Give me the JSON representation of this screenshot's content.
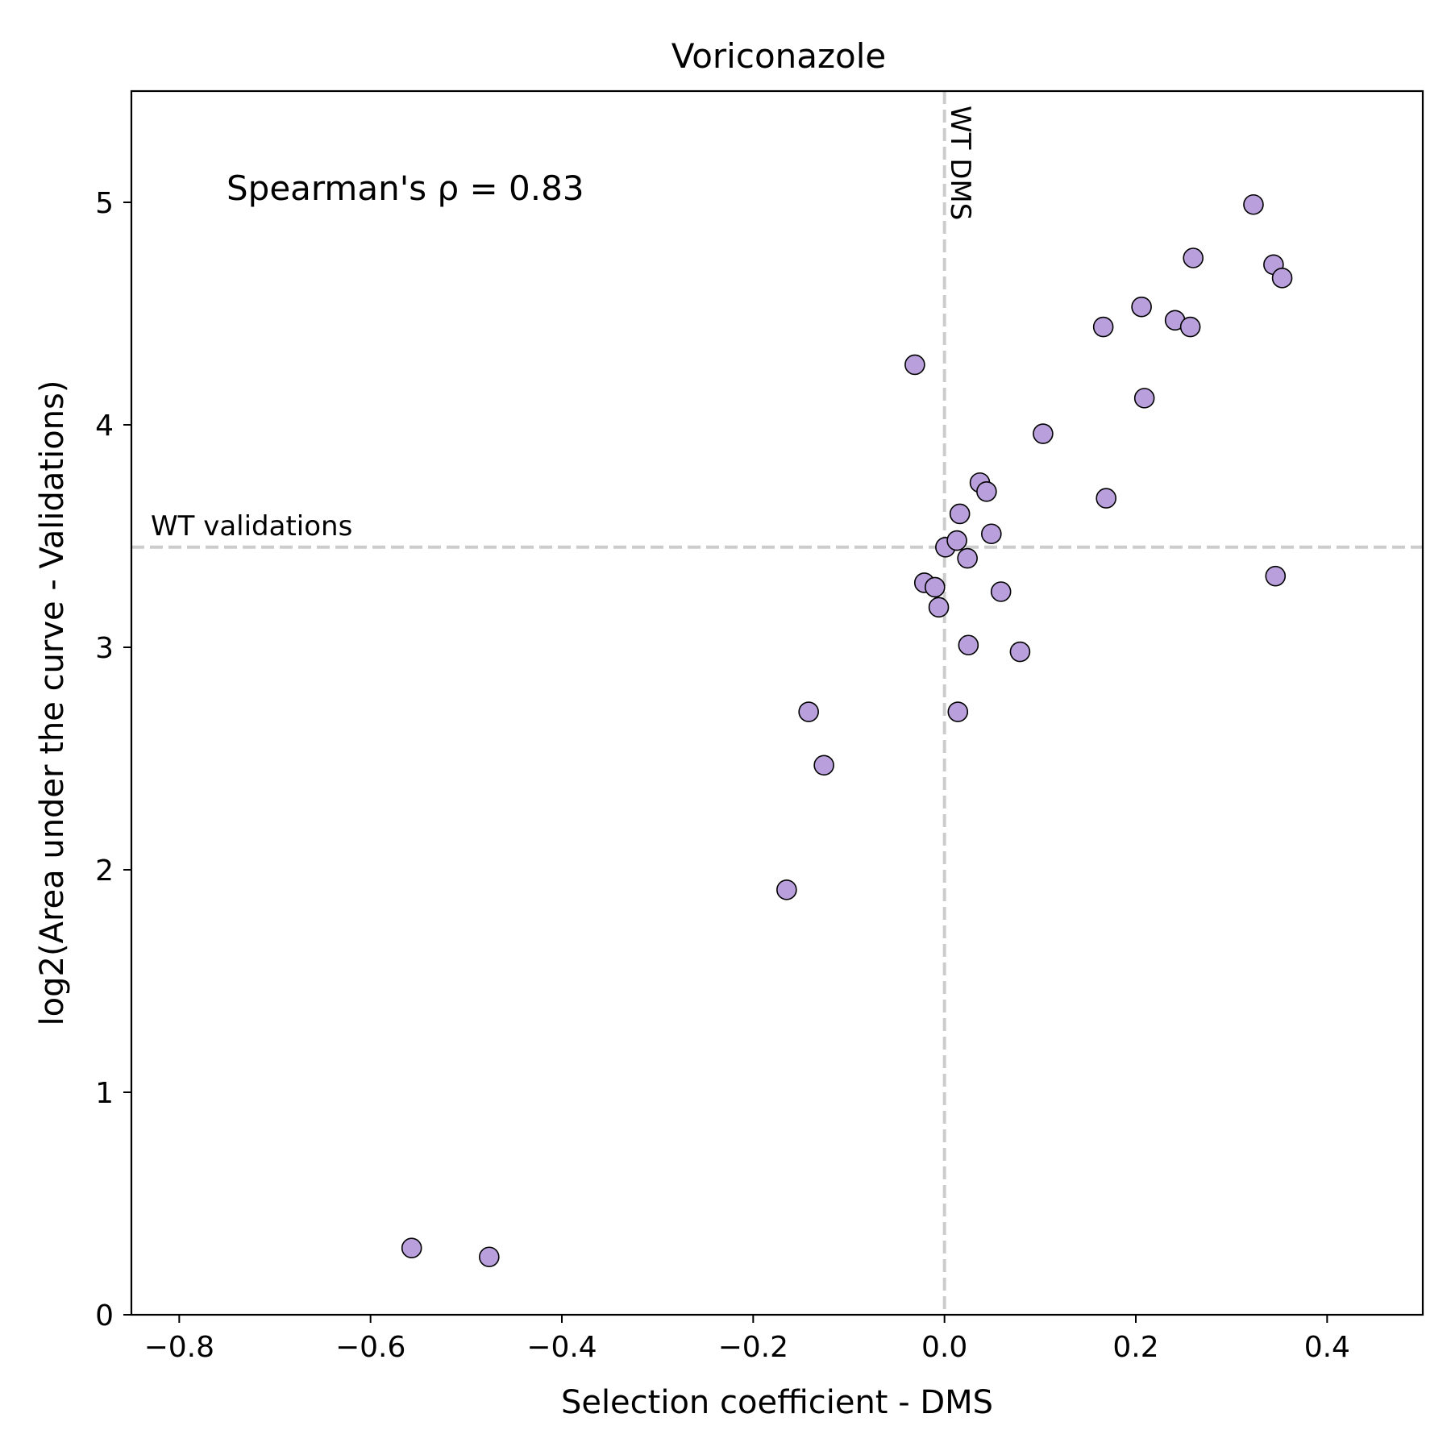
{
  "chart_data": {
    "type": "scatter",
    "title": "Voriconazole",
    "xlabel": "Selection coefficient - DMS",
    "ylabel": "log2(Area under the curve - Validations)",
    "xlim": [
      -0.85,
      0.5
    ],
    "ylim": [
      0,
      5.5
    ],
    "xticks": [
      -0.8,
      -0.6,
      -0.4,
      -0.2,
      0.0,
      0.2,
      0.4
    ],
    "xtick_labels": [
      "−0.8",
      "−0.6",
      "−0.4",
      "−0.2",
      "0.0",
      "0.2",
      "0.4"
    ],
    "yticks": [
      0,
      1,
      2,
      3,
      4,
      5
    ],
    "ytick_labels": [
      "0",
      "1",
      "2",
      "3",
      "4",
      "5"
    ],
    "grid": false,
    "annotation": "Spearman's ρ = 0.83",
    "reference_lines": {
      "horizontal": {
        "y": 3.45,
        "label": "WT validations"
      },
      "vertical": {
        "x": 0.0,
        "label": "WT DMS"
      }
    },
    "colors": {
      "marker_fill": "#b9a0dc",
      "marker_edge": "#000000",
      "reference_line": "#cccccc"
    },
    "points": [
      {
        "x": -0.557,
        "y": 0.3
      },
      {
        "x": -0.476,
        "y": 0.26
      },
      {
        "x": -0.165,
        "y": 1.91
      },
      {
        "x": -0.142,
        "y": 2.71
      },
      {
        "x": -0.126,
        "y": 2.47
      },
      {
        "x": -0.031,
        "y": 4.27
      },
      {
        "x": -0.021,
        "y": 3.29
      },
      {
        "x": -0.01,
        "y": 3.27
      },
      {
        "x": -0.006,
        "y": 3.18
      },
      {
        "x": 0.001,
        "y": 3.45
      },
      {
        "x": 0.013,
        "y": 3.48
      },
      {
        "x": 0.014,
        "y": 2.71
      },
      {
        "x": 0.016,
        "y": 3.6
      },
      {
        "x": 0.024,
        "y": 3.4
      },
      {
        "x": 0.025,
        "y": 3.01
      },
      {
        "x": 0.037,
        "y": 3.74
      },
      {
        "x": 0.044,
        "y": 3.7
      },
      {
        "x": 0.049,
        "y": 3.51
      },
      {
        "x": 0.059,
        "y": 3.25
      },
      {
        "x": 0.079,
        "y": 2.98
      },
      {
        "x": 0.103,
        "y": 3.96
      },
      {
        "x": 0.166,
        "y": 4.44
      },
      {
        "x": 0.169,
        "y": 3.67
      },
      {
        "x": 0.206,
        "y": 4.53
      },
      {
        "x": 0.209,
        "y": 4.12
      },
      {
        "x": 0.241,
        "y": 4.47
      },
      {
        "x": 0.257,
        "y": 4.44
      },
      {
        "x": 0.26,
        "y": 4.75
      },
      {
        "x": 0.323,
        "y": 4.99
      },
      {
        "x": 0.344,
        "y": 4.72
      },
      {
        "x": 0.346,
        "y": 3.32
      },
      {
        "x": 0.353,
        "y": 4.66
      }
    ]
  }
}
